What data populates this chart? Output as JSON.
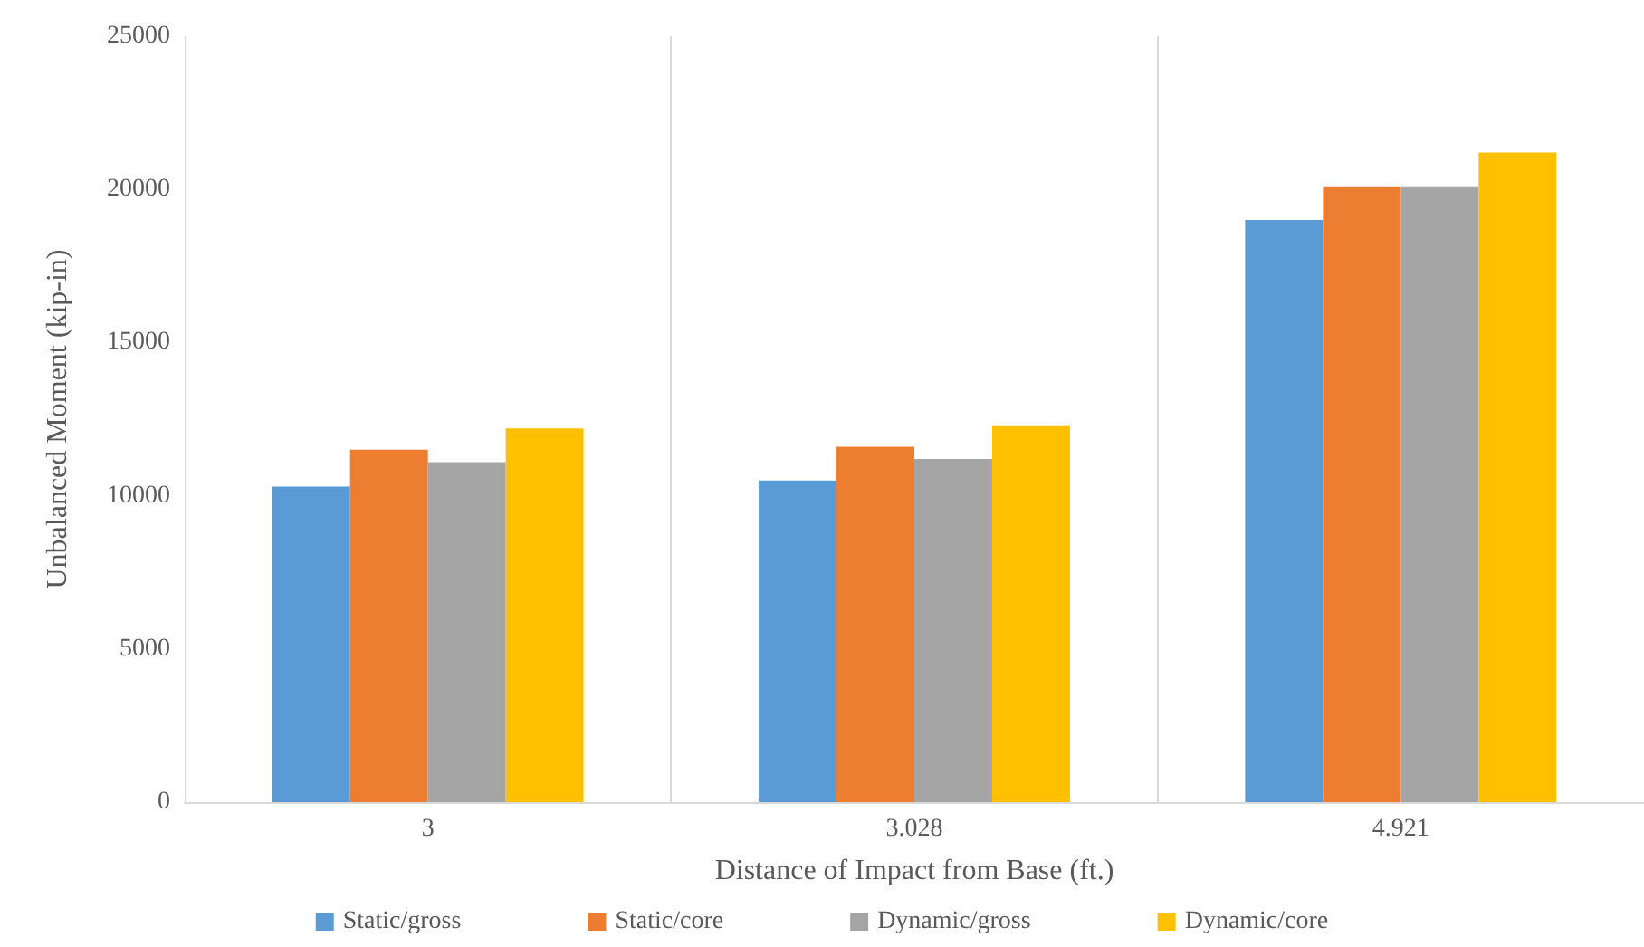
{
  "chart_data": {
    "type": "bar",
    "xlabel": "Distance of Impact from Base (ft.)",
    "ylabel": "Unbalanced Moment (kip-in)",
    "categories": [
      "3",
      "3.028",
      "4.921"
    ],
    "series": [
      {
        "name": "Static/gross",
        "color": "#5b9bd5",
        "values": [
          10300,
          10500,
          19000
        ]
      },
      {
        "name": "Static/core",
        "color": "#ed7d31",
        "values": [
          11500,
          11600,
          20100
        ]
      },
      {
        "name": "Dynamic/gross",
        "color": "#a5a5a5",
        "values": [
          11100,
          11200,
          20100
        ]
      },
      {
        "name": "Dynamic/core",
        "color": "#ffc000",
        "values": [
          12200,
          12300,
          21200
        ]
      }
    ],
    "ylim": [
      0,
      25000
    ],
    "yticks": [
      0,
      5000,
      10000,
      15000,
      20000,
      25000
    ],
    "grid": "x",
    "legend": "bottom"
  }
}
